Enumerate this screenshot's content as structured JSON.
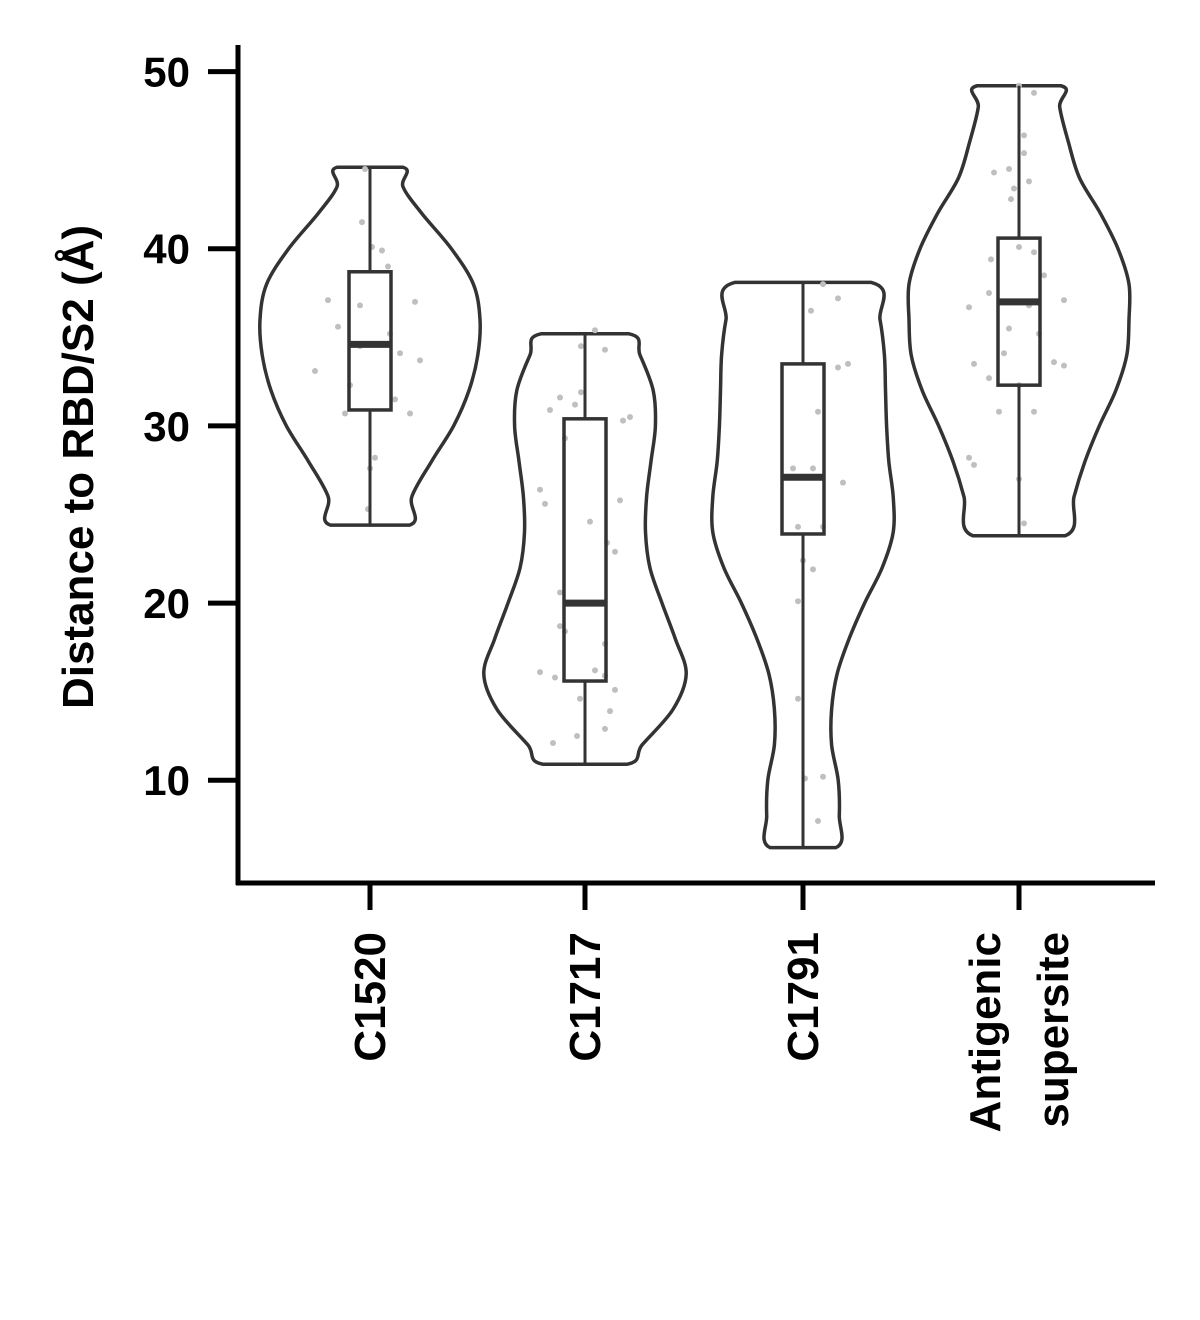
{
  "chart_data": {
    "type": "violin",
    "title": "",
    "xlabel": "",
    "ylabel": "Distance to RBD/S2 (Å)",
    "ylim": [
      4.2,
      51.5
    ],
    "yticks": [
      10,
      20,
      30,
      40,
      50
    ],
    "ytick_labels": [
      "10",
      "20",
      "30",
      "40",
      "50"
    ],
    "grid": false,
    "legend": "none",
    "colors": {
      "outline": "#333333",
      "points": "#bfbfbf",
      "axis": "#000000"
    },
    "categories": [
      {
        "label_lines": [
          "C1520"
        ],
        "box": {
          "min": 24.4,
          "q1": 30.9,
          "median": 34.6,
          "q3": 38.7,
          "max": 44.6
        },
        "violin": [
          [
            24.4,
            0.36
          ],
          [
            26,
            0.38
          ],
          [
            28,
            0.56
          ],
          [
            30,
            0.76
          ],
          [
            32,
            0.9
          ],
          [
            34,
            0.98
          ],
          [
            36,
            1.0
          ],
          [
            38,
            0.94
          ],
          [
            40,
            0.74
          ],
          [
            42,
            0.47
          ],
          [
            43.5,
            0.3
          ],
          [
            44.6,
            0.3
          ]
        ],
        "points": [
          [
            -0.05,
            44.5
          ],
          [
            -0.08,
            41.5
          ],
          [
            0.02,
            40.1
          ],
          [
            0.12,
            39.9
          ],
          [
            0.18,
            39
          ],
          [
            -0.42,
            37.1
          ],
          [
            0.45,
            37
          ],
          [
            -0.1,
            36.8
          ],
          [
            -0.32,
            35.6
          ],
          [
            0.2,
            35.2
          ],
          [
            -0.1,
            34.5
          ],
          [
            0.3,
            34.1
          ],
          [
            0.5,
            33.7
          ],
          [
            -0.55,
            33.1
          ],
          [
            -0.2,
            32.3
          ],
          [
            0.25,
            31.5
          ],
          [
            -0.25,
            30.7
          ],
          [
            0.4,
            30.7
          ],
          [
            0.05,
            28.2
          ],
          [
            0.0,
            27.6
          ],
          [
            -0.02,
            25.3
          ]
        ]
      },
      {
        "label_lines": [
          "C1717"
        ],
        "box": {
          "min": 10.9,
          "q1": 15.6,
          "median": 20.0,
          "q3": 30.4,
          "max": 35.2
        },
        "violin": [
          [
            10.9,
            0.38
          ],
          [
            12,
            0.52
          ],
          [
            14,
            0.8
          ],
          [
            16,
            0.92
          ],
          [
            18,
            0.82
          ],
          [
            20,
            0.7
          ],
          [
            22,
            0.59
          ],
          [
            24,
            0.55
          ],
          [
            26,
            0.56
          ],
          [
            28,
            0.6
          ],
          [
            30,
            0.64
          ],
          [
            32,
            0.62
          ],
          [
            34,
            0.5
          ],
          [
            35.2,
            0.4
          ]
        ],
        "points": [
          [
            0.1,
            35.4
          ],
          [
            0.2,
            34.3
          ],
          [
            -0.04,
            34.5
          ],
          [
            -0.04,
            31.9
          ],
          [
            -0.25,
            31.6
          ],
          [
            -0.1,
            31.2
          ],
          [
            -0.35,
            30.9
          ],
          [
            0.45,
            30.5
          ],
          [
            0.38,
            30.3
          ],
          [
            -0.2,
            29.3
          ],
          [
            0.35,
            25.8
          ],
          [
            -0.45,
            26.4
          ],
          [
            -0.4,
            25.6
          ],
          [
            0.05,
            24.6
          ],
          [
            0.22,
            23.4
          ],
          [
            0.3,
            22.9
          ],
          [
            -0.25,
            20.6
          ],
          [
            -0.2,
            18.4
          ],
          [
            -0.25,
            18.7
          ],
          [
            0.2,
            17.7
          ],
          [
            0.1,
            16.2
          ],
          [
            0.2,
            15.9
          ],
          [
            -0.45,
            16.1
          ],
          [
            -0.3,
            15.8
          ],
          [
            0.3,
            15.1
          ],
          [
            0.25,
            13.9
          ],
          [
            -0.05,
            14.6
          ],
          [
            -0.08,
            12.5
          ],
          [
            0.2,
            12.9
          ],
          [
            -0.32,
            12.1
          ]
        ]
      },
      {
        "label_lines": [
          "C1791"
        ],
        "box": {
          "min": 6.2,
          "q1": 23.9,
          "median": 27.1,
          "q3": 33.5,
          "max": 38.1
        },
        "violin": [
          [
            6.2,
            0.3
          ],
          [
            8,
            0.33
          ],
          [
            10,
            0.32
          ],
          [
            12,
            0.26
          ],
          [
            14,
            0.26
          ],
          [
            16,
            0.31
          ],
          [
            18,
            0.42
          ],
          [
            20,
            0.56
          ],
          [
            22,
            0.72
          ],
          [
            24,
            0.82
          ],
          [
            26,
            0.82
          ],
          [
            28,
            0.78
          ],
          [
            30,
            0.76
          ],
          [
            32,
            0.75
          ],
          [
            34,
            0.74
          ],
          [
            36,
            0.7
          ],
          [
            38.1,
            0.62
          ]
        ],
        "points": [
          [
            0.2,
            38
          ],
          [
            0.35,
            37.2
          ],
          [
            0.08,
            36.5
          ],
          [
            0.35,
            33.3
          ],
          [
            0.45,
            33.5
          ],
          [
            0.15,
            30.8
          ],
          [
            -0.1,
            27.6
          ],
          [
            0.1,
            27.6
          ],
          [
            0.4,
            26.8
          ],
          [
            -0.05,
            24.3
          ],
          [
            0.2,
            24.3
          ],
          [
            0.0,
            22.4
          ],
          [
            0.1,
            21.9
          ],
          [
            -0.05,
            20.1
          ],
          [
            -0.05,
            14.6
          ],
          [
            0.2,
            10.2
          ],
          [
            0.02,
            10.1
          ],
          [
            0.15,
            7.7
          ]
        ]
      },
      {
        "label_lines": [
          "Antigenic",
          "supersite"
        ],
        "box": {
          "min": 23.8,
          "q1": 32.3,
          "median": 37.0,
          "q3": 40.6,
          "max": 49.2
        },
        "violin": [
          [
            23.8,
            0.42
          ],
          [
            26,
            0.5
          ],
          [
            28,
            0.6
          ],
          [
            30,
            0.73
          ],
          [
            32,
            0.88
          ],
          [
            34,
            0.98
          ],
          [
            36,
            1.0
          ],
          [
            38,
            1.0
          ],
          [
            40,
            0.9
          ],
          [
            42,
            0.74
          ],
          [
            44,
            0.55
          ],
          [
            46,
            0.45
          ],
          [
            48,
            0.37
          ],
          [
            49.2,
            0.38
          ]
        ],
        "points": [
          [
            0.0,
            49.2
          ],
          [
            0.15,
            48.8
          ],
          [
            0.05,
            46.4
          ],
          [
            0.05,
            45.4
          ],
          [
            -0.1,
            44.5
          ],
          [
            -0.25,
            44.3
          ],
          [
            0.1,
            43.8
          ],
          [
            -0.05,
            43.4
          ],
          [
            -0.08,
            42.8
          ],
          [
            0.0,
            40.1
          ],
          [
            0.15,
            39.8
          ],
          [
            -0.28,
            39.4
          ],
          [
            0.25,
            38.5
          ],
          [
            -0.3,
            37.5
          ],
          [
            -0.5,
            36.7
          ],
          [
            0.1,
            36.8
          ],
          [
            0.45,
            37.1
          ],
          [
            -0.1,
            35.5
          ],
          [
            0.2,
            35.2
          ],
          [
            -0.15,
            34.1
          ],
          [
            -0.45,
            33.5
          ],
          [
            0.35,
            33.6
          ],
          [
            0.45,
            33.4
          ],
          [
            -0.3,
            32.7
          ],
          [
            0.0,
            32.3
          ],
          [
            0.15,
            30.8
          ],
          [
            -0.2,
            30.8
          ],
          [
            -0.5,
            28.2
          ],
          [
            -0.45,
            27.8
          ],
          [
            0.0,
            27
          ],
          [
            0.05,
            24.5
          ]
        ]
      }
    ]
  }
}
